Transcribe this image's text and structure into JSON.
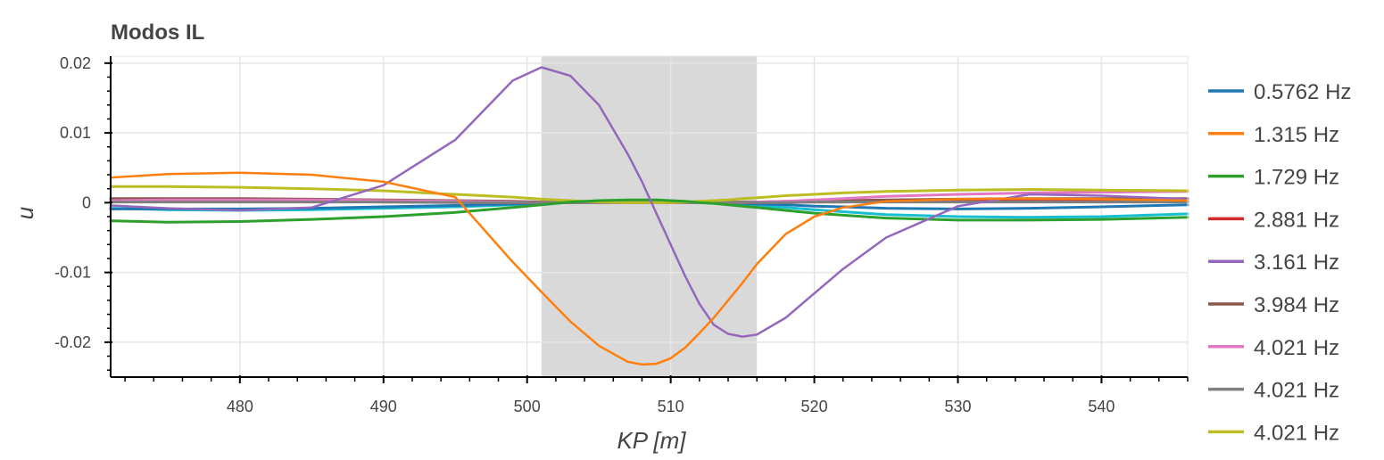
{
  "chart_data": {
    "type": "line",
    "title": "Modos IL",
    "xlabel": "KP [m]",
    "ylabel": "u",
    "xlim": [
      471,
      546
    ],
    "ylim": [
      -0.025,
      0.021
    ],
    "x_ticks": [
      480,
      490,
      500,
      510,
      520,
      530,
      540
    ],
    "x_tick_labels": [
      "480",
      "490",
      "500",
      "510",
      "520",
      "530",
      "540"
    ],
    "y_ticks": [
      0.02,
      0.01,
      0,
      -0.01,
      -0.02
    ],
    "y_tick_labels": [
      "0.02",
      "0.01",
      "0",
      "-0.01",
      "-0.02"
    ],
    "grid": true,
    "legend_position": "right",
    "shaded_region": {
      "x_start": 501,
      "x_end": 516,
      "color": "#d9d9d9"
    },
    "x": [
      471,
      475,
      480,
      485,
      490,
      495,
      499,
      501,
      503,
      505,
      507,
      508,
      509,
      510,
      511,
      512,
      513,
      514,
      515,
      516,
      518,
      520,
      522,
      525,
      530,
      535,
      540,
      546
    ],
    "series": [
      {
        "name": "0.5762 Hz",
        "color": "#1f77b4",
        "values": [
          -0.0009,
          -0.0009,
          -0.0009,
          -0.0008,
          -0.0006,
          -0.0004,
          -0.0002,
          -0.0001,
          0.0,
          0.0001,
          0.0001,
          0.0001,
          0.0001,
          0.0001,
          0.0001,
          0.0,
          0.0,
          0.0,
          -0.0001,
          -0.0002,
          -0.0003,
          -0.0005,
          -0.0006,
          -0.0008,
          -0.0009,
          -0.0008,
          -0.0006,
          -0.0003
        ]
      },
      {
        "name": "1.315 Hz",
        "color": "#ff7f0e",
        "values": [
          0.0036,
          0.0041,
          0.0043,
          0.004,
          0.003,
          0.0008,
          -0.0085,
          -0.0128,
          -0.017,
          -0.0205,
          -0.0228,
          -0.0232,
          -0.0231,
          -0.0223,
          -0.0208,
          -0.0187,
          -0.0165,
          -0.014,
          -0.0115,
          -0.0088,
          -0.0045,
          -0.002,
          -0.0007,
          0.0002,
          0.0005,
          0.0006,
          0.0005,
          0.0003
        ]
      },
      {
        "name": "1.729 Hz",
        "color": "#2ca02c",
        "values": [
          -0.0026,
          -0.0028,
          -0.0027,
          -0.0024,
          -0.002,
          -0.0014,
          -0.0007,
          -0.0003,
          0.0001,
          0.0003,
          0.0004,
          0.0004,
          0.0004,
          0.0003,
          0.0002,
          0.0,
          -0.0001,
          -0.0003,
          -0.0005,
          -0.0007,
          -0.0011,
          -0.0015,
          -0.0018,
          -0.0022,
          -0.0025,
          -0.0025,
          -0.0024,
          -0.0021
        ]
      },
      {
        "name": "2.881 Hz",
        "color": "#d62728",
        "values": [
          0.0002,
          0.0002,
          0.0002,
          0.0002,
          0.0001,
          0.0001,
          0.0,
          0.0,
          0.0,
          0.0,
          0.0,
          0.0,
          0.0,
          0.0,
          0.0,
          0.0,
          0.0,
          0.0,
          0.0,
          0.0,
          0.0001,
          0.0001,
          0.0001,
          0.0002,
          0.0002,
          0.0002,
          0.0002,
          0.0002
        ]
      },
      {
        "name": "3.161 Hz",
        "color": "#9467bd",
        "values": [
          -0.0004,
          -0.0008,
          -0.0011,
          -0.0007,
          0.0025,
          0.009,
          0.0175,
          0.0194,
          0.0182,
          0.014,
          0.007,
          0.003,
          -0.0015,
          -0.006,
          -0.0105,
          -0.0145,
          -0.0175,
          -0.0188,
          -0.0192,
          -0.0189,
          -0.0165,
          -0.013,
          -0.0095,
          -0.005,
          -0.0005,
          0.0012,
          0.001,
          0.0005
        ]
      },
      {
        "name": "3.984 Hz",
        "color": "#8c564b",
        "values": [
          0.0006,
          0.0006,
          0.0006,
          0.0005,
          0.0004,
          0.0003,
          0.0002,
          0.0001,
          0.0001,
          0.0001,
          0.0001,
          0.0001,
          0.0001,
          0.0001,
          0.0001,
          0.0001,
          0.0001,
          0.0001,
          0.0001,
          0.0001,
          0.0002,
          0.0002,
          0.0003,
          0.0004,
          0.0005,
          0.0006,
          0.0006,
          0.0006
        ]
      },
      {
        "name": "4.021 Hz",
        "color": "#e377c2",
        "values": [
          0.0003,
          0.0004,
          0.0004,
          0.0004,
          0.0003,
          0.0002,
          0.0001,
          0.0,
          0.0,
          0.0,
          0.0,
          0.0,
          0.0,
          0.0,
          0.0,
          0.0,
          0.0,
          0.0,
          0.0,
          0.0001,
          0.0002,
          0.0004,
          0.0006,
          0.0009,
          0.0012,
          0.0014,
          0.0015,
          0.0016
        ]
      },
      {
        "name": "4.021 Hz",
        "color": "#7f7f7f",
        "values": [
          0.0001,
          0.0001,
          0.0001,
          0.0001,
          0.0001,
          0.0,
          0.0,
          0.0,
          0.0,
          0.0,
          0.0,
          0.0,
          0.0,
          0.0,
          0.0,
          0.0,
          0.0,
          0.0,
          0.0,
          0.0,
          0.0,
          0.0001,
          0.0001,
          0.0001,
          0.0001,
          0.0001,
          0.0001,
          0.0001
        ]
      },
      {
        "name": "4.021 Hz",
        "color": "#bcbd22",
        "values": [
          0.0023,
          0.0023,
          0.0022,
          0.002,
          0.0017,
          0.0012,
          0.0008,
          0.0005,
          0.0003,
          0.0001,
          0.0,
          0.0,
          0.0,
          0.0,
          0.0001,
          0.0002,
          0.0003,
          0.0004,
          0.0006,
          0.0007,
          0.001,
          0.0012,
          0.0014,
          0.0016,
          0.0018,
          0.0019,
          0.0018,
          0.0017
        ]
      },
      {
        "name": "",
        "color": "#17becf",
        "values": [
          -0.0008,
          -0.001,
          -0.0011,
          -0.001,
          -0.0008,
          -0.0006,
          -0.0003,
          -0.0001,
          0.0,
          0.0001,
          0.0001,
          0.0001,
          0.0001,
          0.0001,
          0.0,
          0.0,
          -0.0001,
          -0.0002,
          -0.0003,
          -0.0004,
          -0.0007,
          -0.001,
          -0.0013,
          -0.0017,
          -0.002,
          -0.0021,
          -0.002,
          -0.0016
        ]
      }
    ]
  }
}
